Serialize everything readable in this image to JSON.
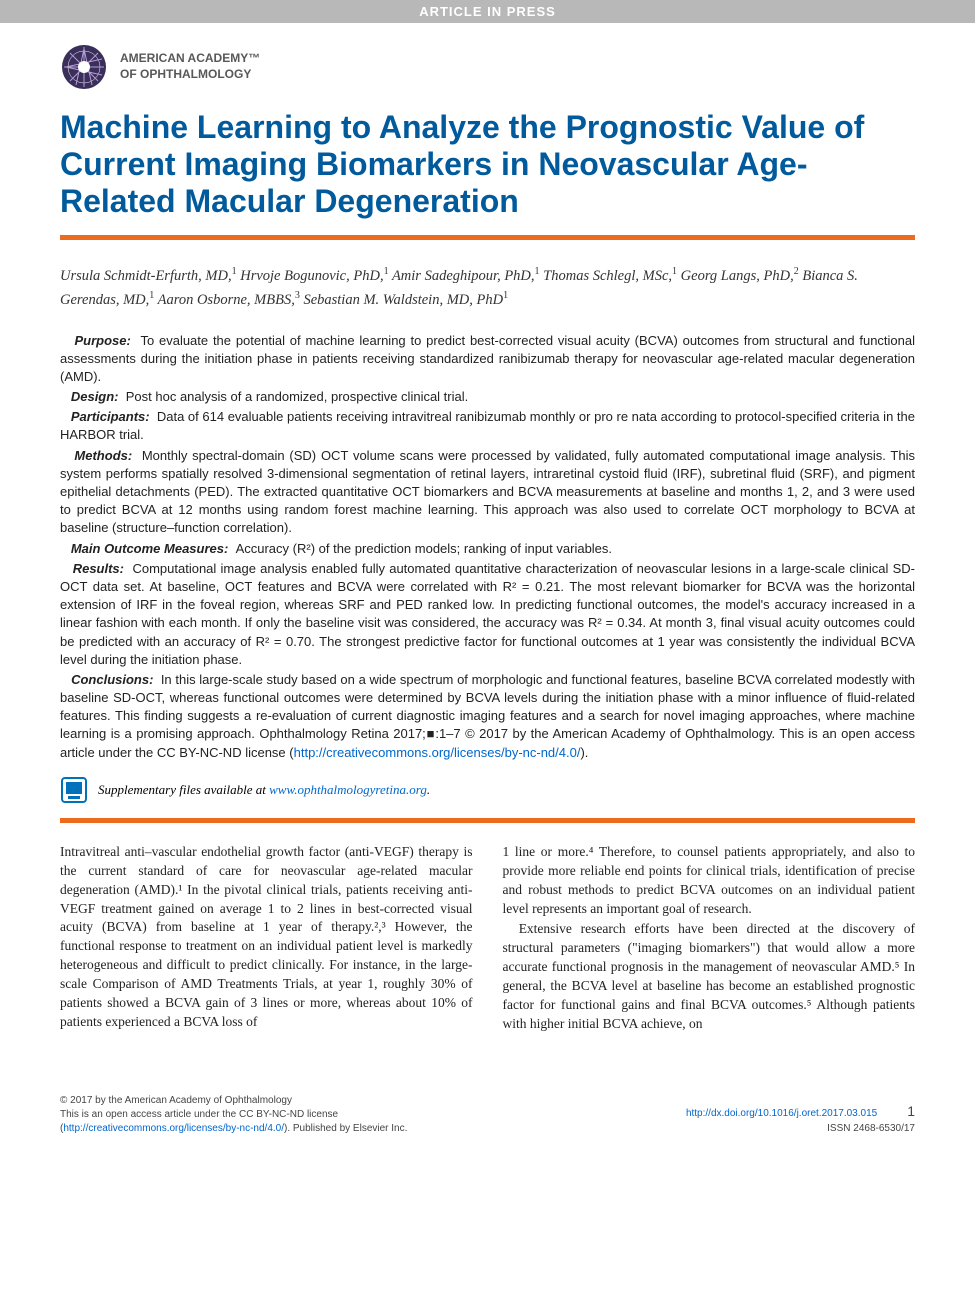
{
  "banner": "ARTICLE IN PRESS",
  "org": {
    "line1": "AMERICAN ACADEMY™",
    "line2": "OF OPHTHALMOLOGY"
  },
  "title": "Machine Learning to Analyze the Prognostic Value of Current Imaging Biomarkers in Neovascular Age-Related Macular Degeneration",
  "colors": {
    "title": "#005a9c",
    "rule": "#ed6b1f",
    "banner_bg": "#b8b8b8",
    "link": "#0066cc"
  },
  "authors_html": "Ursula Schmidt-Erfurth, MD,<sup>1</sup> Hrvoje Bogunovic, PhD,<sup>1</sup> Amir Sadeghipour, PhD,<sup>1</sup> Thomas Schlegl, MSc,<sup>1</sup> Georg Langs, PhD,<sup>2</sup> Bianca S. Gerendas, MD,<sup>1</sup> Aaron Osborne, MBBS,<sup>3</sup> Sebastian M. Waldstein, MD, PhD<sup>1</sup>",
  "abstract": {
    "purpose": {
      "label": "Purpose:",
      "text": "To evaluate the potential of machine learning to predict best-corrected visual acuity (BCVA) outcomes from structural and functional assessments during the initiation phase in patients receiving standardized ranibizumab therapy for neovascular age-related macular degeneration (AMD)."
    },
    "design": {
      "label": "Design:",
      "text": "Post hoc analysis of a randomized, prospective clinical trial."
    },
    "participants": {
      "label": "Participants:",
      "text": "Data of 614 evaluable patients receiving intravitreal ranibizumab monthly or pro re nata according to protocol-specified criteria in the HARBOR trial."
    },
    "methods": {
      "label": "Methods:",
      "text": "Monthly spectral-domain (SD) OCT volume scans were processed by validated, fully automated computational image analysis. This system performs spatially resolved 3-dimensional segmentation of retinal layers, intraretinal cystoid fluid (IRF), subretinal fluid (SRF), and pigment epithelial detachments (PED). The extracted quantitative OCT biomarkers and BCVA measurements at baseline and months 1, 2, and 3 were used to predict BCVA at 12 months using random forest machine learning. This approach was also used to correlate OCT morphology to BCVA at baseline (structure–function correlation)."
    },
    "outcome": {
      "label": "Main Outcome Measures:",
      "text": "Accuracy (R²) of the prediction models; ranking of input variables."
    },
    "results": {
      "label": "Results:",
      "text": "Computational image analysis enabled fully automated quantitative characterization of neovascular lesions in a large-scale clinical SD-OCT data set. At baseline, OCT features and BCVA were correlated with R² = 0.21. The most relevant biomarker for BCVA was the horizontal extension of IRF in the foveal region, whereas SRF and PED ranked low. In predicting functional outcomes, the model's accuracy increased in a linear fashion with each month. If only the baseline visit was considered, the accuracy was R² = 0.34. At month 3, final visual acuity outcomes could be predicted with an accuracy of R² = 0.70. The strongest predictive factor for functional outcomes at 1 year was consistently the individual BCVA level during the initiation phase."
    },
    "conclusions": {
      "label": "Conclusions:",
      "text_before_link": "In this large-scale study based on a wide spectrum of morphologic and functional features, baseline BCVA correlated modestly with baseline SD-OCT, whereas functional outcomes were determined by BCVA levels during the initiation phase with a minor influence of fluid-related features. This finding suggests a re-evaluation of current diagnostic imaging features and a search for novel imaging approaches, where machine learning is a promising approach. Ophthalmology Retina 2017;■:1–7 © 2017 by the American Academy of Ophthalmology. This is an open access article under the CC BY-NC-ND license (",
      "link_text": "http://creativecommons.org/licenses/by-nc-nd/4.0/",
      "text_after_link": ")."
    }
  },
  "supplementary": {
    "text": "Supplementary files available at ",
    "link": "www.ophthalmologyretina.org",
    "suffix": "."
  },
  "body": {
    "col1": "Intravitreal anti–vascular endothelial growth factor (anti-VEGF) therapy is the current standard of care for neovascular age-related macular degeneration (AMD).¹ In the pivotal clinical trials, patients receiving anti-VEGF treatment gained on average 1 to 2 lines in best-corrected visual acuity (BCVA) from baseline at 1 year of therapy.²,³ However, the functional response to treatment on an individual patient level is markedly heterogeneous and difficult to predict clinically. For instance, in the large-scale Comparison of AMD Treatments Trials, at year 1, roughly 30% of patients showed a BCVA gain of 3 lines or more, whereas about 10% of patients experienced a BCVA loss of",
    "col2_p1": "1 line or more.⁴ Therefore, to counsel patients appropriately, and also to provide more reliable end points for clinical trials, identification of precise and robust methods to predict BCVA outcomes on an individual patient level represents an important goal of research.",
    "col2_p2": "Extensive research efforts have been directed at the discovery of structural parameters (\"imaging biomarkers\") that would allow a more accurate functional prognosis in the management of neovascular AMD.⁵ In general, the BCVA level at baseline has become an established prognostic factor for functional gains and final BCVA outcomes.⁵ Although patients with higher initial BCVA achieve, on"
  },
  "footer": {
    "left_line1": "© 2017 by the American Academy of Ophthalmology",
    "left_line2": "This is an open access article under the CC BY-NC-ND license",
    "left_line3_before": "(",
    "left_line3_link": "http://creativecommons.org/licenses/by-nc-nd/4.0/",
    "left_line3_after": "). Published by Elsevier Inc.",
    "right_doi": "http://dx.doi.org/10.1016/j.oret.2017.03.015",
    "right_issn": "ISSN 2468-6530/17",
    "page": "1"
  }
}
